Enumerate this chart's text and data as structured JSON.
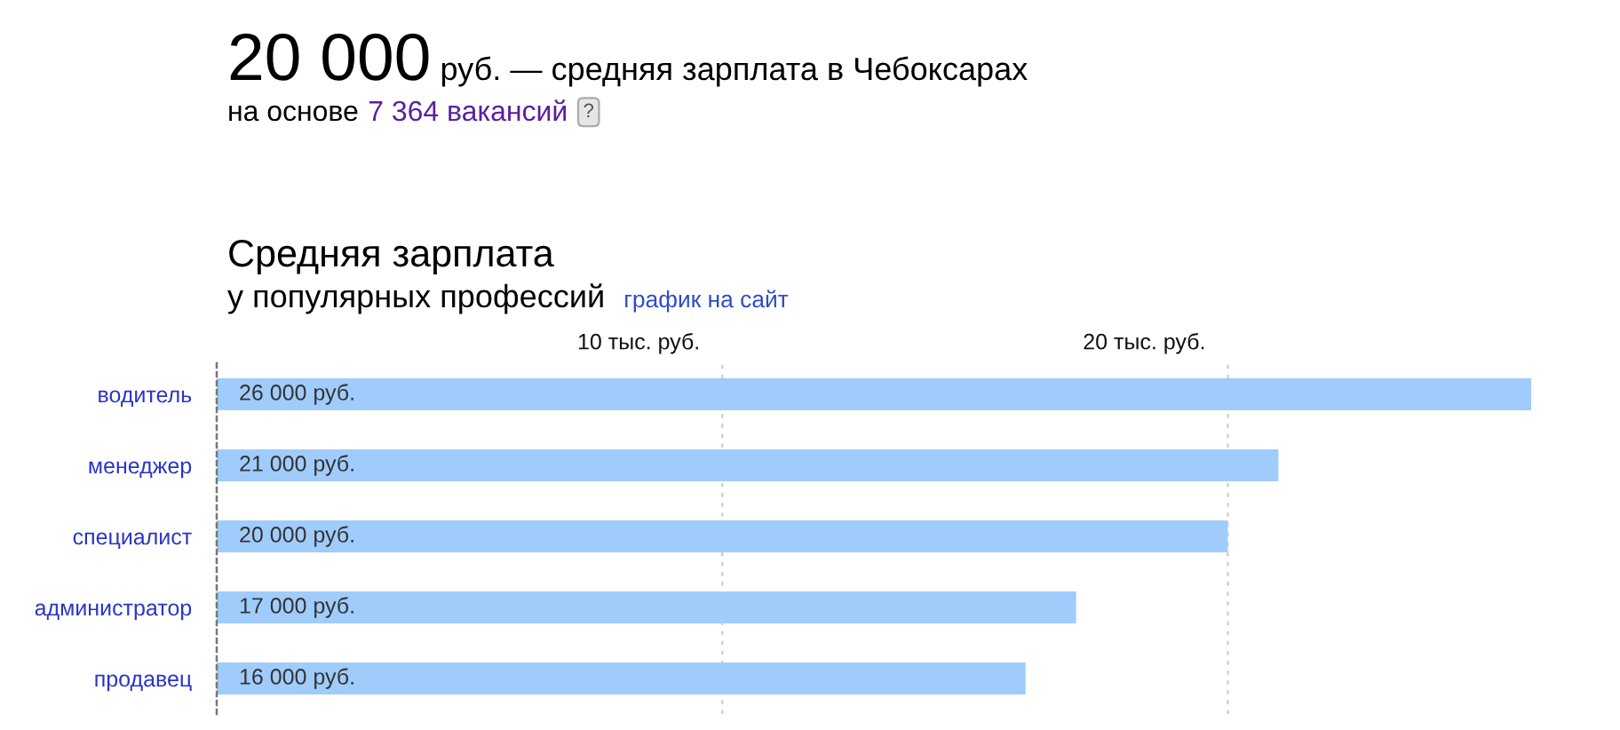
{
  "chart_data": {
    "type": "bar",
    "orientation": "horizontal",
    "title": "Средняя зарплата",
    "subtitle": "у популярных профессий",
    "annotations": [
      "20 000",
      "руб. — средняя зарплата в Чебоксарах",
      "на основе",
      "7 364 вакансий",
      "?",
      "график на сайт"
    ],
    "categories": [
      "водитель",
      "менеджер",
      "специалист",
      "администратор",
      "продавец"
    ],
    "values": [
      26000,
      21000,
      20000,
      17000,
      16000
    ],
    "value_labels": [
      "26 000 руб.",
      "21 000 руб.",
      "20 000 руб.",
      "17 000 руб.",
      "16 000 руб."
    ],
    "color": "#a0ccfc",
    "tick_labels": "y",
    "ref_lines": [
      {
        "axis": "x",
        "value": 10000,
        "label": "10 тыс. руб.",
        "color": "#cccccc",
        "line_style": "dotted"
      },
      {
        "axis": "x",
        "value": 20000,
        "label": "20 тыс. руб.",
        "color": "#cccccc",
        "line_style": "dotted"
      }
    ]
  }
}
